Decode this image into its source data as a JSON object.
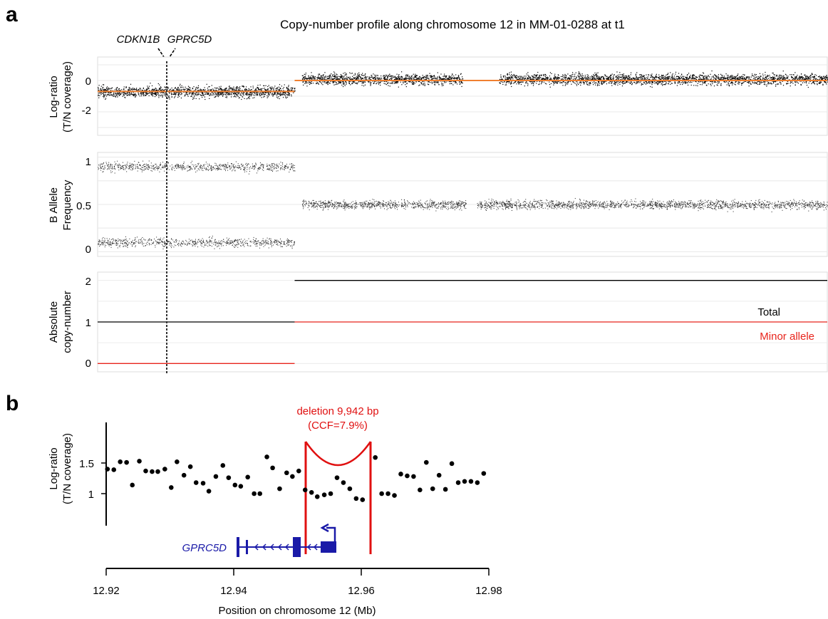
{
  "panel_a": {
    "letter": "a",
    "title": "Copy-number profile along chromosome 12 in MM-01-0288 at t1",
    "gene_labels": [
      "CDKN1B",
      "GPRC5D"
    ],
    "track_logratio": {
      "ylabel_line1": "Log-ratio",
      "ylabel_line2": "(T/N coverage)",
      "ticks": [
        "0",
        "-2"
      ]
    },
    "track_baf": {
      "ylabel_line1": "B Allele",
      "ylabel_line2": "Frequency",
      "ticks": [
        "1",
        "0.5",
        "0"
      ]
    },
    "track_cn": {
      "ylabel_line1": "Absolute",
      "ylabel_line2": "copy-number",
      "ticks": [
        "2",
        "1",
        "0"
      ],
      "legend_total": "Total",
      "legend_minor": "Minor allele"
    }
  },
  "panel_b": {
    "letter": "b",
    "ylabel_line1": "Log-ratio",
    "ylabel_line2": "(T/N coverage)",
    "yticks": [
      "1.5",
      "1"
    ],
    "xticks": [
      "12.92",
      "12.94",
      "12.96",
      "12.98"
    ],
    "xlabel": "Position on chromosome 12 (Mb)",
    "gene_label": "GPRC5D",
    "deletion_line1": "deletion 9,942 bp",
    "deletion_line2": "(CCF=7.9%)"
  },
  "colors": {
    "segment_orange": "#f08030",
    "minor_red": "#e8241c",
    "gene_blue": "#1a1aa8",
    "deletion_red": "#e01010",
    "points": "#000000"
  },
  "chart_data": [
    {
      "type": "scatter",
      "name_on_chart": "Log-ratio (T/N coverage)",
      "x_axis": "chromosome 12 position (relative, 0-1)",
      "ylim": [
        -3.5,
        1.5
      ],
      "segments": [
        {
          "x_start": 0.0,
          "x_end": 0.27,
          "log_ratio": -0.7
        },
        {
          "x_start": 0.27,
          "x_end": 1.0,
          "log_ratio": 0.0
        }
      ],
      "point_clusters": [
        {
          "x_start": 0.0,
          "x_end": 0.27,
          "center": -0.7,
          "spread": 0.6
        },
        {
          "x_start": 0.28,
          "x_end": 0.5,
          "center": 0.1,
          "spread": 0.6
        },
        {
          "x_start": 0.55,
          "x_end": 1.0,
          "center": 0.1,
          "spread": 0.6
        }
      ]
    },
    {
      "type": "scatter",
      "name_on_chart": "B Allele Frequency",
      "ylim": [
        -0.05,
        1.05
      ],
      "point_clusters": [
        {
          "x_start": 0.0,
          "x_end": 0.27,
          "bands": [
            0.9,
            0.1
          ]
        },
        {
          "x_start": 0.28,
          "x_end": 1.0,
          "bands": [
            0.5
          ]
        }
      ]
    },
    {
      "type": "line",
      "name_on_chart": "Absolute copy-number",
      "ylim": [
        -0.2,
        2.2
      ],
      "series": [
        {
          "name": "Total",
          "segments": [
            {
              "x_start": 0.0,
              "x_end": 0.27,
              "value": 1
            },
            {
              "x_start": 0.27,
              "x_end": 1.0,
              "value": 2
            }
          ]
        },
        {
          "name": "Minor allele",
          "segments": [
            {
              "x_start": 0.0,
              "x_end": 0.27,
              "value": 0
            },
            {
              "x_start": 0.27,
              "x_end": 1.0,
              "value": 1
            }
          ]
        }
      ]
    },
    {
      "type": "scatter",
      "name_on_chart": "Log-ratio (T/N coverage)",
      "xlabel": "Position on chromosome 12 (Mb)",
      "xlim": [
        12.92,
        12.98
      ],
      "ylim": [
        0.55,
        2.05
      ],
      "deletion": {
        "start": 12.9512,
        "end": 12.9612,
        "length_bp": 9942,
        "ccf": "7.9%"
      },
      "gene": {
        "name": "GPRC5D",
        "start": 12.9405,
        "end": 12.9545,
        "strand": "-"
      },
      "points": [
        [
          12.9202,
          1.4
        ],
        [
          12.9212,
          1.39
        ],
        [
          12.9222,
          1.52
        ],
        [
          12.9232,
          1.51
        ],
        [
          12.9241,
          1.14
        ],
        [
          12.9252,
          1.53
        ],
        [
          12.9262,
          1.37
        ],
        [
          12.9272,
          1.36
        ],
        [
          12.9281,
          1.36
        ],
        [
          12.9292,
          1.4
        ],
        [
          12.9302,
          1.1
        ],
        [
          12.9311,
          1.52
        ],
        [
          12.9322,
          1.3
        ],
        [
          12.9332,
          1.44
        ],
        [
          12.9341,
          1.18
        ],
        [
          12.9352,
          1.17
        ],
        [
          12.9361,
          1.04
        ],
        [
          12.9372,
          1.28
        ],
        [
          12.9383,
          1.46
        ],
        [
          12.9392,
          1.26
        ],
        [
          12.9402,
          1.14
        ],
        [
          12.9411,
          1.12
        ],
        [
          12.9422,
          1.27
        ],
        [
          12.9432,
          1.0
        ],
        [
          12.9441,
          1.0
        ],
        [
          12.9452,
          1.6
        ],
        [
          12.9461,
          1.42
        ],
        [
          12.9472,
          1.08
        ],
        [
          12.9483,
          1.34
        ],
        [
          12.9492,
          1.28
        ],
        [
          12.9502,
          1.37
        ],
        [
          12.9512,
          1.06
        ],
        [
          12.9522,
          1.02
        ],
        [
          12.9531,
          0.95
        ],
        [
          12.9542,
          0.98
        ],
        [
          12.9552,
          1.0
        ],
        [
          12.9562,
          1.26
        ],
        [
          12.9572,
          1.18
        ],
        [
          12.9582,
          1.08
        ],
        [
          12.9592,
          0.92
        ],
        [
          12.9602,
          0.9
        ],
        [
          12.9622,
          1.59
        ],
        [
          12.9632,
          1.0
        ],
        [
          12.9642,
          1.0
        ],
        [
          12.9652,
          0.97
        ],
        [
          12.9662,
          1.32
        ],
        [
          12.9672,
          1.29
        ],
        [
          12.9682,
          1.28
        ],
        [
          12.9692,
          1.06
        ],
        [
          12.9702,
          1.51
        ],
        [
          12.9712,
          1.08
        ],
        [
          12.9722,
          1.3
        ],
        [
          12.9732,
          1.07
        ],
        [
          12.9742,
          1.49
        ],
        [
          12.9752,
          1.18
        ],
        [
          12.9762,
          1.2
        ],
        [
          12.9772,
          1.2
        ],
        [
          12.9782,
          1.18
        ],
        [
          12.9792,
          1.33
        ]
      ]
    }
  ]
}
